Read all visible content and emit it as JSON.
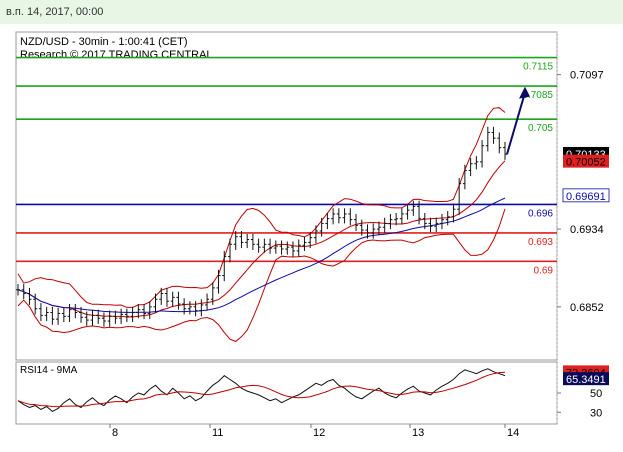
{
  "header": {
    "datetime": "в.п. 14, 2017, 00:00"
  },
  "chart_data": {
    "type": "line",
    "title": "NZD/USD - 30min - 1:00:41 (CET)",
    "subtitle": "Research © 2017 TRADING CENTRAL",
    "x_ticks": [
      "8",
      "11",
      "12",
      "13",
      "14"
    ],
    "y_ticks": [
      "0.7097",
      "0.6934",
      "0.6852"
    ],
    "ylim": [
      0.6798,
      0.7142
    ],
    "price_series": [
      0.687,
      0.6866,
      0.686,
      0.685,
      0.6843,
      0.6846,
      0.6839,
      0.6845,
      0.6842,
      0.6849,
      0.6846,
      0.6841,
      0.6838,
      0.6843,
      0.684,
      0.6837,
      0.6842,
      0.684,
      0.6844,
      0.6842,
      0.6846,
      0.6849,
      0.6845,
      0.6852,
      0.686,
      0.6866,
      0.6858,
      0.6862,
      0.6855,
      0.685,
      0.6852,
      0.6848,
      0.6854,
      0.686,
      0.6872,
      0.6885,
      0.6905,
      0.6918,
      0.6926,
      0.692,
      0.6923,
      0.6918,
      0.6915,
      0.6918,
      0.6914,
      0.6916,
      0.6913,
      0.6915,
      0.6911,
      0.6917,
      0.692,
      0.6925,
      0.6932,
      0.694,
      0.6945,
      0.695,
      0.6946,
      0.695,
      0.6944,
      0.6938,
      0.6933,
      0.693,
      0.6934,
      0.6936,
      0.694,
      0.6944,
      0.6945,
      0.695,
      0.6954,
      0.6958,
      0.6945,
      0.694,
      0.6937,
      0.694,
      0.6944,
      0.6947,
      0.6955,
      0.6982,
      0.6996,
      0.7003,
      0.7005,
      0.7022,
      0.7036,
      0.703,
      0.702,
      0.7013
    ],
    "levels": [
      {
        "value": 0.7115,
        "label": "0.7115",
        "color": "#1aa51a"
      },
      {
        "value": 0.7085,
        "label": "0.7085",
        "color": "#1aa51a"
      },
      {
        "value": 0.705,
        "label": "0.705",
        "color": "#1aa51a"
      },
      {
        "value": 0.696,
        "label": "0.696",
        "color": "#0a0aaa"
      },
      {
        "value": 0.693,
        "label": "0.693",
        "color": "#e02020"
      },
      {
        "value": 0.69,
        "label": "0.69",
        "color": "#e02020"
      }
    ],
    "price_tags": [
      {
        "value": 0.70133,
        "label": "0.70133",
        "bg": "#000000",
        "fg": "#ffffff"
      },
      {
        "value": 0.70052,
        "label": "0.70052",
        "bg": "#e02020",
        "fg": "#000000"
      },
      {
        "value": 0.69691,
        "label": "0.69691",
        "bg": "#ffffff",
        "fg": "#0a0aaa"
      }
    ],
    "forecast_arrow": {
      "from": 0.7013,
      "to": 0.7078
    },
    "rsi": {
      "label": "RSI14 - 9MA",
      "ylim": [
        20,
        80
      ],
      "y_ticks": [
        "50",
        "30"
      ],
      "tags": [
        {
          "value": 72.3694,
          "label": "72.3694",
          "bg": "#e02020",
          "fg": "#000000"
        },
        {
          "value": 65.3491,
          "label": "65.3491",
          "bg": "#0a0a5a",
          "fg": "#ffffff"
        }
      ],
      "values": [
        42,
        38,
        35,
        37,
        33,
        36,
        31,
        34,
        40,
        44,
        38,
        35,
        41,
        45,
        40,
        37,
        43,
        47,
        44,
        40,
        46,
        50,
        48,
        54,
        58,
        52,
        48,
        55,
        50,
        44,
        47,
        42,
        45,
        52,
        58,
        62,
        68,
        64,
        60,
        55,
        52,
        50,
        48,
        45,
        42,
        44,
        40,
        43,
        46,
        48,
        52,
        56,
        60,
        58,
        62,
        64,
        58,
        55,
        50,
        46,
        44,
        48,
        52,
        55,
        50,
        47,
        45,
        50,
        54,
        57,
        52,
        50,
        48,
        53,
        57,
        60,
        64,
        70,
        74,
        72,
        70,
        73,
        75,
        72,
        70,
        68
      ]
    }
  }
}
